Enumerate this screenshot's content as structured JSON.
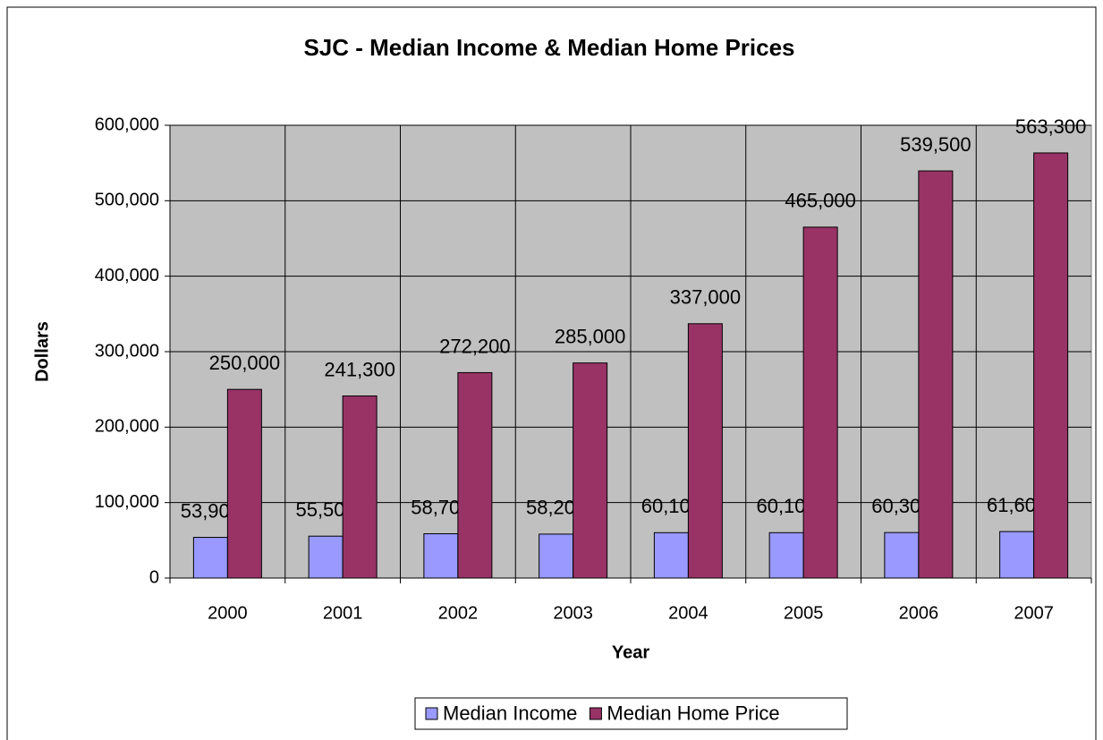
{
  "chart_data": {
    "type": "bar",
    "title": "SJC - Median Income & Median Home Prices",
    "x_label": "Year",
    "y_label": "Dollars",
    "categories": [
      "2000",
      "2001",
      "2002",
      "2003",
      "2004",
      "2005",
      "2006",
      "2007"
    ],
    "series": [
      {
        "name": "Median Income",
        "color": "#9999ff",
        "values": [
          53900,
          55500,
          58700,
          58200,
          60100,
          60100,
          60300,
          61600
        ],
        "value_labels": [
          "53,900",
          "55,500",
          "58,700",
          "58,200",
          "60,100",
          "60,100",
          "60,300",
          "61,600"
        ]
      },
      {
        "name": "Median Home Price",
        "color": "#993366",
        "values": [
          250000,
          241300,
          272200,
          285000,
          337000,
          465000,
          539500,
          563300
        ],
        "value_labels": [
          "250,000",
          "241,300",
          "272,200",
          "285,000",
          "337,000",
          "465,000",
          "539,500",
          "563,300"
        ]
      }
    ],
    "ylim": [
      0,
      600000
    ],
    "yticks": [
      0,
      {
        "value": 100000,
        "label": "100,000"
      },
      {
        "value": 200000,
        "label": "200,000"
      },
      {
        "value": 300000,
        "label": "300,000"
      },
      {
        "value": 400000,
        "label": "400,000"
      },
      {
        "value": 500000,
        "label": "500,000"
      },
      {
        "value": 600000,
        "label": "600,000"
      }
    ],
    "grid": true,
    "legend": "bottom"
  }
}
